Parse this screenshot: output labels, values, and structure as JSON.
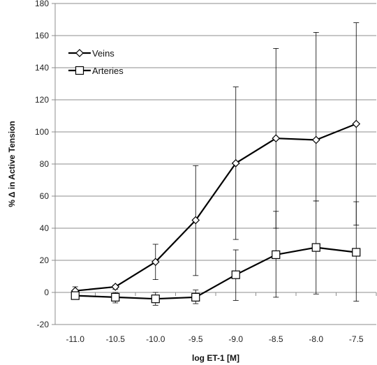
{
  "chart_data": {
    "type": "line",
    "xlabel": "log ET-1 [M]",
    "ylabel": "% Δ in Active Tension",
    "x": [
      -11.0,
      -10.5,
      -10.0,
      -9.5,
      -9.0,
      -8.5,
      -8.0,
      -7.5
    ],
    "x_tick_labels": [
      "-11.0",
      "-10.5",
      "-10.0",
      "-9.5",
      "-9.0",
      "-8.5",
      "-8.0",
      "-7.5"
    ],
    "xlim": [
      -11.25,
      -7.25
    ],
    "ylim": [
      -20,
      180
    ],
    "y_ticks": [
      -20,
      0,
      20,
      40,
      60,
      80,
      100,
      120,
      140,
      160,
      180
    ],
    "grid": "horizontal",
    "legend_placement": "top-left",
    "series": [
      {
        "name": "Veins",
        "marker": "diamond",
        "color": "#000000",
        "values": [
          1,
          3.5,
          19,
          45,
          80.5,
          96,
          95,
          105
        ],
        "err_upper": [
          3.5,
          4.5,
          30,
          79,
          128,
          152,
          162,
          168
        ],
        "err_lower": [
          -2,
          2,
          8,
          10.5,
          33,
          40,
          57,
          42
        ]
      },
      {
        "name": "Arteries",
        "marker": "square",
        "color": "#000000",
        "values": [
          -2,
          -3,
          -4,
          -3,
          11,
          23.5,
          28,
          25
        ],
        "err_upper": [
          0,
          0,
          0,
          1.5,
          26.5,
          50.5,
          57,
          56.5
        ],
        "err_lower": [
          -4,
          -6.5,
          -8,
          -7,
          -5,
          -3,
          -1,
          -5.5
        ]
      }
    ]
  }
}
